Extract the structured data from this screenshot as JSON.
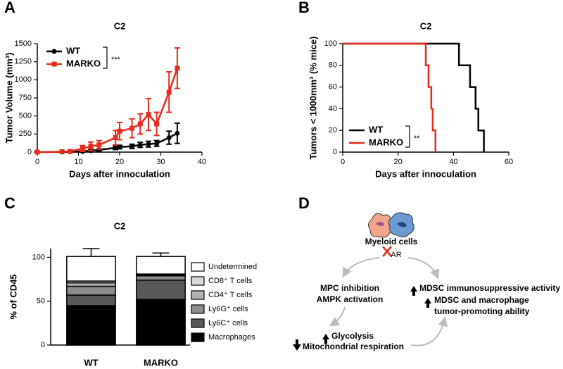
{
  "panel_labels": [
    "A",
    "B",
    "C",
    "D"
  ],
  "chart_data": [
    {
      "type": "line",
      "title": "C2",
      "xlabel": "Days after innoculation",
      "ylabel": "Tumor Volume (mm³)",
      "x": [
        0,
        6,
        8,
        11,
        13,
        15,
        19,
        20,
        23,
        25,
        27,
        29,
        32,
        34
      ],
      "series": [
        {
          "name": "WT",
          "color": "#000000",
          "marker": "circle",
          "values": [
            0,
            2,
            5,
            10,
            20,
            30,
            60,
            70,
            80,
            100,
            110,
            120,
            200,
            260
          ],
          "errors": [
            0,
            2,
            4,
            8,
            12,
            15,
            25,
            25,
            30,
            35,
            40,
            40,
            90,
            140
          ]
        },
        {
          "name": "MARKO",
          "color": "#e8291c",
          "marker": "square",
          "values": [
            0,
            5,
            10,
            50,
            80,
            100,
            200,
            290,
            330,
            390,
            520,
            390,
            830,
            1160
          ],
          "errors": [
            0,
            5,
            10,
            40,
            60,
            60,
            100,
            120,
            130,
            140,
            220,
            160,
            280,
            280
          ]
        }
      ],
      "xlim": [
        0,
        40
      ],
      "xticks": [
        0,
        10,
        20,
        30,
        40
      ],
      "ylim": [
        0,
        1500
      ],
      "yticks": [
        0,
        250,
        500,
        750,
        1000,
        1250,
        1500
      ],
      "legend": "upper-left",
      "annotation": "***"
    },
    {
      "type": "step",
      "title": "C2",
      "xlabel": "Days after innoculation",
      "ylabel": "Tumors < 1000mm³ (% mice)",
      "series": [
        {
          "name": "WT",
          "color": "#000000",
          "x": [
            0,
            42,
            46,
            48,
            49,
            51
          ],
          "values": [
            100,
            80,
            60,
            40,
            20,
            0
          ]
        },
        {
          "name": "MARKO",
          "color": "#e8291c",
          "x": [
            0,
            30,
            31,
            32,
            32.5,
            33.5
          ],
          "values": [
            100,
            80,
            60,
            40,
            20,
            0
          ]
        }
      ],
      "xlim": [
        0,
        60
      ],
      "xticks": [
        0,
        20,
        40,
        60
      ],
      "ylim": [
        0,
        100
      ],
      "yticks": [
        0,
        20,
        40,
        60,
        80,
        100
      ],
      "legend": "lower-left",
      "annotation": "**"
    },
    {
      "type": "stacked_bar",
      "title": "C2",
      "ylabel": "% of CD45",
      "categories": [
        "WT",
        "MARKO"
      ],
      "series": [
        {
          "name": "Macrophages",
          "color": "#000000",
          "values": [
            45,
            52
          ],
          "errors": [
            6,
            4
          ]
        },
        {
          "name": "Ly6C⁺ cells",
          "color": "#595959",
          "values": [
            12,
            22
          ],
          "errors": [
            4,
            3
          ]
        },
        {
          "name": "Ly6G⁺ cells",
          "color": "#8c8c8c",
          "values": [
            10,
            5
          ],
          "errors": [
            3,
            3
          ]
        },
        {
          "name": "CD4⁺ T cells",
          "color": "#b3b3b3",
          "values": [
            4,
            1
          ],
          "errors": [
            2,
            1
          ]
        },
        {
          "name": "CD8⁺ T cells",
          "color": "#d9d9d9",
          "values": [
            2,
            1
          ],
          "errors": [
            3,
            1
          ]
        },
        {
          "name": "Undetermined",
          "color": "#ffffff",
          "values": [
            28,
            20
          ],
          "errors": [
            9,
            4
          ]
        }
      ],
      "ylim": [
        0,
        110
      ],
      "yticks": [
        0,
        50,
        100
      ],
      "legend": "right"
    }
  ],
  "diagram": {
    "cell_label": "Myeloid cells",
    "receptor": "AR",
    "left": [
      "MPC inhibition",
      "AMPK activation"
    ],
    "right": [
      "MDSC immunosuppressive activity",
      "MDSC and macrophage",
      "tumor-promoting ability"
    ],
    "bottom": [
      "Glycolysis",
      "Mitochondrial respiration"
    ]
  }
}
